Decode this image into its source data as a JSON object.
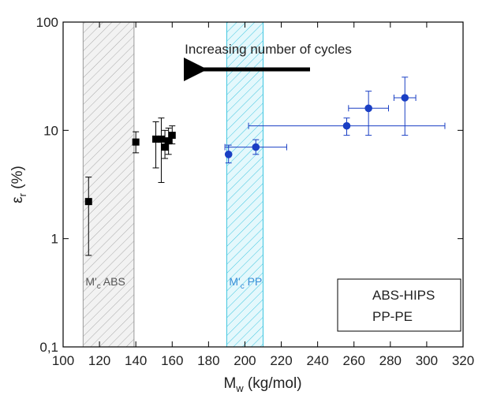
{
  "chart_data": {
    "type": "scatter",
    "annotation": "Increasing number of cycles",
    "xlabel": [
      "M",
      "w",
      " (kg/mol)"
    ],
    "ylabel": [
      "ε",
      "r",
      " (%)"
    ],
    "xlim": [
      100,
      320
    ],
    "xticks": [
      100,
      120,
      140,
      160,
      180,
      200,
      220,
      240,
      260,
      280,
      300,
      320
    ],
    "ylim": [
      0.1,
      100
    ],
    "yscale": "log",
    "yticks": [
      {
        "value": 0.1,
        "label": "0,1"
      },
      1,
      10,
      100
    ],
    "legend": "lower right",
    "bands": [
      {
        "label": [
          "M'",
          "c",
          " ABS"
        ],
        "xrange": [
          111,
          139
        ],
        "color": "#9a9a9a",
        "fill": "#f2f2f2"
      },
      {
        "label": [
          "M'",
          "c",
          " PP"
        ],
        "xrange": [
          190,
          210
        ],
        "color": "#3fc6e0",
        "fill": "#e4f8fc"
      }
    ],
    "series": [
      {
        "name": "ABS-HIPS",
        "color": "#000000",
        "marker": "square",
        "x": [
          114,
          140,
          151,
          154,
          156,
          158,
          160
        ],
        "values": [
          2.2,
          7.8,
          8.3,
          8.3,
          7,
          8,
          9
        ],
        "yerr_minus": [
          1.5,
          1.6,
          3.8,
          5,
          1.5,
          2,
          1.5
        ],
        "yerr_plus": [
          1.5,
          1.9,
          3.7,
          4.7,
          3,
          2.5,
          2
        ]
      },
      {
        "name": "PP-PE",
        "color": "#1a3fc4",
        "marker": "circle",
        "x": [
          191,
          206,
          256,
          268,
          288
        ],
        "values": [
          6,
          7,
          11,
          16,
          20
        ],
        "yerr_minus": [
          1,
          1,
          2,
          7,
          11
        ],
        "yerr_plus": [
          1.3,
          1.2,
          2,
          7,
          11
        ],
        "xerr": [
          0,
          17,
          54,
          11,
          6
        ]
      }
    ]
  }
}
